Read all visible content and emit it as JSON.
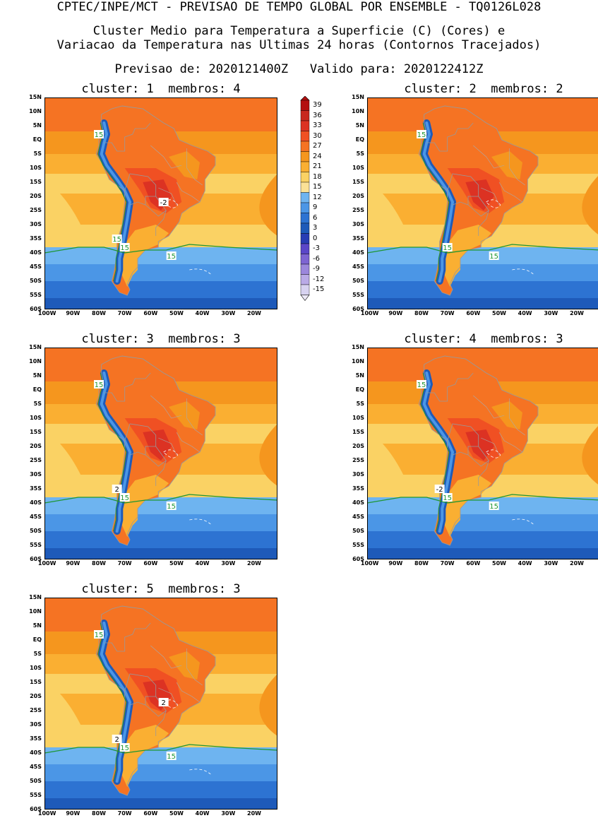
{
  "header": {
    "line1": "CPTEC/INPE/MCT - PREVISAO DE TEMPO GLOBAL POR ENSEMBLE - TQ0126L028",
    "line2": "Cluster Medio para Temperatura a Superficie (C) (Cores) e",
    "line3": "Variacao da Temperatura nas Ultimas 24 horas (Contornos Tracejados)",
    "line4": "Previsao de: 2020121400Z   Valido para: 2020122412Z"
  },
  "axes": {
    "lat_labels": [
      "15N",
      "10N",
      "5N",
      "EQ",
      "5S",
      "10S",
      "15S",
      "20S",
      "25S",
      "30S",
      "35S",
      "40S",
      "45S",
      "50S",
      "55S",
      "60S"
    ],
    "lon_labels": [
      "100W",
      "90W",
      "80W",
      "70W",
      "60W",
      "50W",
      "40W",
      "30W",
      "20W"
    ],
    "lat_range": [
      -60,
      15
    ],
    "lon_range": [
      -101,
      -11
    ]
  },
  "legend": {
    "levels": [
      "39",
      "36",
      "33",
      "30",
      "27",
      "24",
      "21",
      "18",
      "15",
      "12",
      "9",
      "6",
      "3",
      "0",
      "-3",
      "-6",
      "-9",
      "-12",
      "-15"
    ],
    "colors": [
      "#b40f0f",
      "#c8281e",
      "#dc3223",
      "#f05023",
      "#f57323",
      "#f5961e",
      "#faaf32",
      "#fad264",
      "#fae196",
      "#6eb4f0",
      "#4b96e6",
      "#2d73d2",
      "#1e5ab9",
      "#283cb4",
      "#5a46c8",
      "#7d64d2",
      "#9b87dc",
      "#b9aae6",
      "#d7d2f0"
    ]
  },
  "clusters": [
    {
      "label": "cluster: 1  membros: 4",
      "contours": [
        "15",
        "15",
        "15",
        "15",
        "-2"
      ]
    },
    {
      "label": "cluster: 2  membros: 2",
      "contours": [
        "15",
        "15",
        "15"
      ]
    },
    {
      "label": "cluster: 3  membros: 3",
      "contours": [
        "15",
        "15",
        "15",
        "2"
      ]
    },
    {
      "label": "cluster: 4  membros: 3",
      "contours": [
        "15",
        "15",
        "15",
        "-2"
      ]
    },
    {
      "label": "cluster: 5  membros: 3",
      "contours": [
        "15",
        "15",
        "15",
        "2",
        "2"
      ]
    }
  ]
}
